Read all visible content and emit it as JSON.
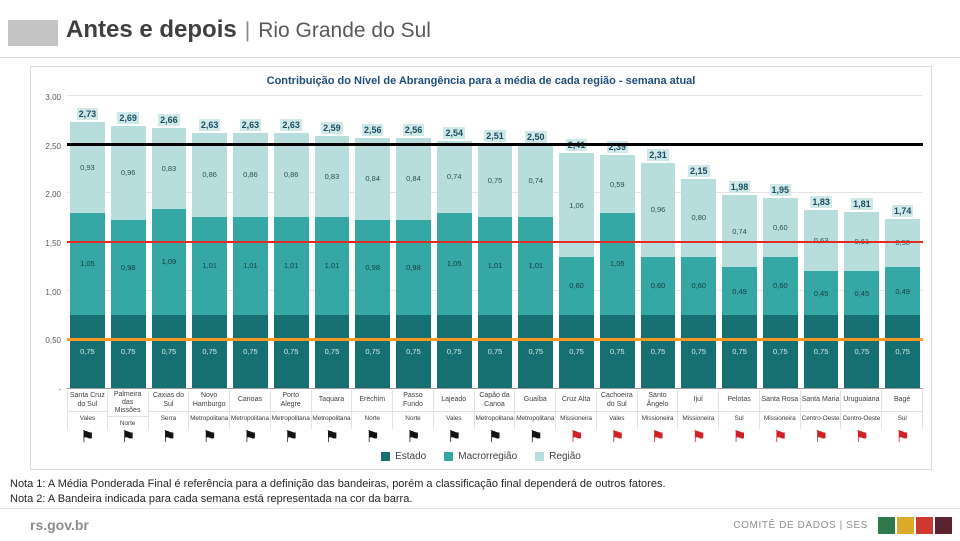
{
  "header": {
    "title": "Antes e depois",
    "separator": "|",
    "subtitle": "Rio Grande do Sul"
  },
  "chart_data": {
    "type": "bar",
    "stacked": true,
    "title": "Contribuição do Nível de Abrangência para a média de cada região - semana atual",
    "ylim": [
      0,
      3.0
    ],
    "ytick_values": [
      0,
      0.5,
      1.0,
      1.5,
      2.0,
      2.5,
      3.0
    ],
    "ytick_labels": [
      "-",
      "0,50",
      "1,00",
      "1,50",
      "2,00",
      "2,50",
      "3,00"
    ],
    "grid": true,
    "legend_position": "bottom",
    "reference_lines": [
      {
        "value": 2.5,
        "color": "#000000",
        "thickness": 3
      },
      {
        "value": 1.5,
        "color": "#e32b23",
        "thickness": 2
      },
      {
        "value": 0.5,
        "color": "#f59a23",
        "thickness": 3
      }
    ],
    "categories": [
      "Santa Cruz do Sul",
      "Palmeira das Missões",
      "Caxias do Sul",
      "Novo Hamburgo",
      "Canoas",
      "Porto Alegre",
      "Taquara",
      "Erechim",
      "Passo Fundo",
      "Lajeado",
      "Capão da Canoa",
      "Guaíba",
      "Cruz Alta",
      "Cachoeira do Sul",
      "Santo Ângelo",
      "Ijuí",
      "Pelotas",
      "Santa Rosa",
      "Santa Maria",
      "Uruguaiana",
      "Bagé"
    ],
    "macro_regions": [
      "Vales",
      "Norte",
      "Serra",
      "Metropolitana",
      "Metropolitana",
      "Metropolitana",
      "Metropolitana",
      "Norte",
      "Norte",
      "Vales",
      "Metropolitana",
      "Metropolitana",
      "Missioneira",
      "Vales",
      "Missioneira",
      "Missioneira",
      "Sul",
      "Missioneira",
      "Centro-Oeste",
      "Centro-Oeste",
      "Sul"
    ],
    "series": [
      {
        "name": "Estado",
        "key": "estado",
        "color": "#166f71",
        "label_color": "#d6ecec",
        "values": [
          0.75,
          0.75,
          0.75,
          0.75,
          0.75,
          0.75,
          0.75,
          0.75,
          0.75,
          0.75,
          0.75,
          0.75,
          0.75,
          0.75,
          0.75,
          0.75,
          0.75,
          0.75,
          0.75,
          0.75,
          0.75
        ]
      },
      {
        "name": "Macrorregião",
        "key": "macrorregiao",
        "color": "#35a7a4",
        "label_color": "#123f3f",
        "values": [
          1.05,
          0.98,
          1.09,
          1.01,
          1.01,
          1.01,
          1.01,
          0.98,
          0.98,
          1.05,
          1.01,
          1.01,
          0.6,
          1.05,
          0.6,
          0.6,
          0.49,
          0.6,
          0.45,
          0.45,
          0.49
        ]
      },
      {
        "name": "Região",
        "key": "regiao",
        "color": "#b7dedd",
        "label_color": "#2f4f4f",
        "values": [
          0.93,
          0.96,
          0.83,
          0.86,
          0.86,
          0.86,
          0.83,
          0.84,
          0.84,
          0.74,
          0.75,
          0.74,
          1.06,
          0.59,
          0.96,
          0.8,
          0.74,
          0.6,
          0.63,
          0.61,
          0.5
        ]
      }
    ],
    "totals": [
      2.73,
      2.69,
      2.66,
      2.63,
      2.63,
      2.63,
      2.59,
      2.56,
      2.56,
      2.54,
      2.51,
      2.5,
      2.41,
      2.39,
      2.31,
      2.15,
      1.98,
      1.95,
      1.83,
      1.81,
      1.74
    ],
    "flags": [
      "black",
      "black",
      "black",
      "black",
      "black",
      "black",
      "black",
      "black",
      "black",
      "black",
      "black",
      "black",
      "red",
      "red",
      "red",
      "red",
      "red",
      "red",
      "red",
      "red",
      "red"
    ],
    "flag_colors": {
      "black": "#131313",
      "red": "#cf2128"
    },
    "flag_glyph": "⚑",
    "total_label_bg": "#cfe9e9",
    "total_label_color": "#1c4d63"
  },
  "notes": {
    "note1": "Nota 1: A Média Ponderada Final é referência para a definição das bandeiras, porém a classificação final dependerá de outros fatores.",
    "note2": "Nota 2: A Bandeira indicada para cada semana está representada na cor da barra."
  },
  "footer": {
    "site": "rs.gov.br",
    "committee": "COMITÊ DE DADOS | SES",
    "squares": [
      "#2f7a4b",
      "#ddaa2b",
      "#cf3a30",
      "#5c2430"
    ]
  }
}
